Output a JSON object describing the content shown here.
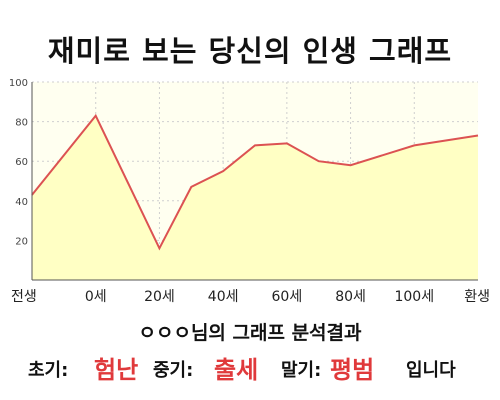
{
  "title": "재미로 보는 당신의 인생 그래프",
  "chart_data": {
    "type": "area",
    "x": [
      "전생",
      "0세",
      "20세",
      "40세",
      "60세",
      "80세",
      "100세",
      "환생"
    ],
    "x_values": [
      -20,
      0,
      20,
      40,
      60,
      80,
      100,
      120
    ],
    "series": [
      {
        "points": [
          [
            -20,
            43
          ],
          [
            0,
            83
          ],
          [
            20,
            16
          ],
          [
            30,
            47
          ],
          [
            40,
            55
          ],
          [
            50,
            68
          ],
          [
            60,
            69
          ],
          [
            70,
            60
          ],
          [
            80,
            58
          ],
          [
            100,
            68
          ],
          [
            120,
            73
          ]
        ]
      }
    ],
    "ylim": [
      0,
      100
    ],
    "y_ticks": [
      20,
      40,
      60,
      80,
      100
    ],
    "grid": true,
    "colors": {
      "line": "#dc5252",
      "fill": "#ffffc4",
      "plot_bg": "#fffff0",
      "grid": "#cfcfcf"
    }
  },
  "summary": {
    "text": "ㅇㅇㅇ님의 그래프 분석결과"
  },
  "result": {
    "early_label": "초기:",
    "early_value": "험난",
    "mid_label": "중기:",
    "mid_value": "출세",
    "late_label": "말기:",
    "late_value": "평범",
    "ending": "입니다"
  }
}
